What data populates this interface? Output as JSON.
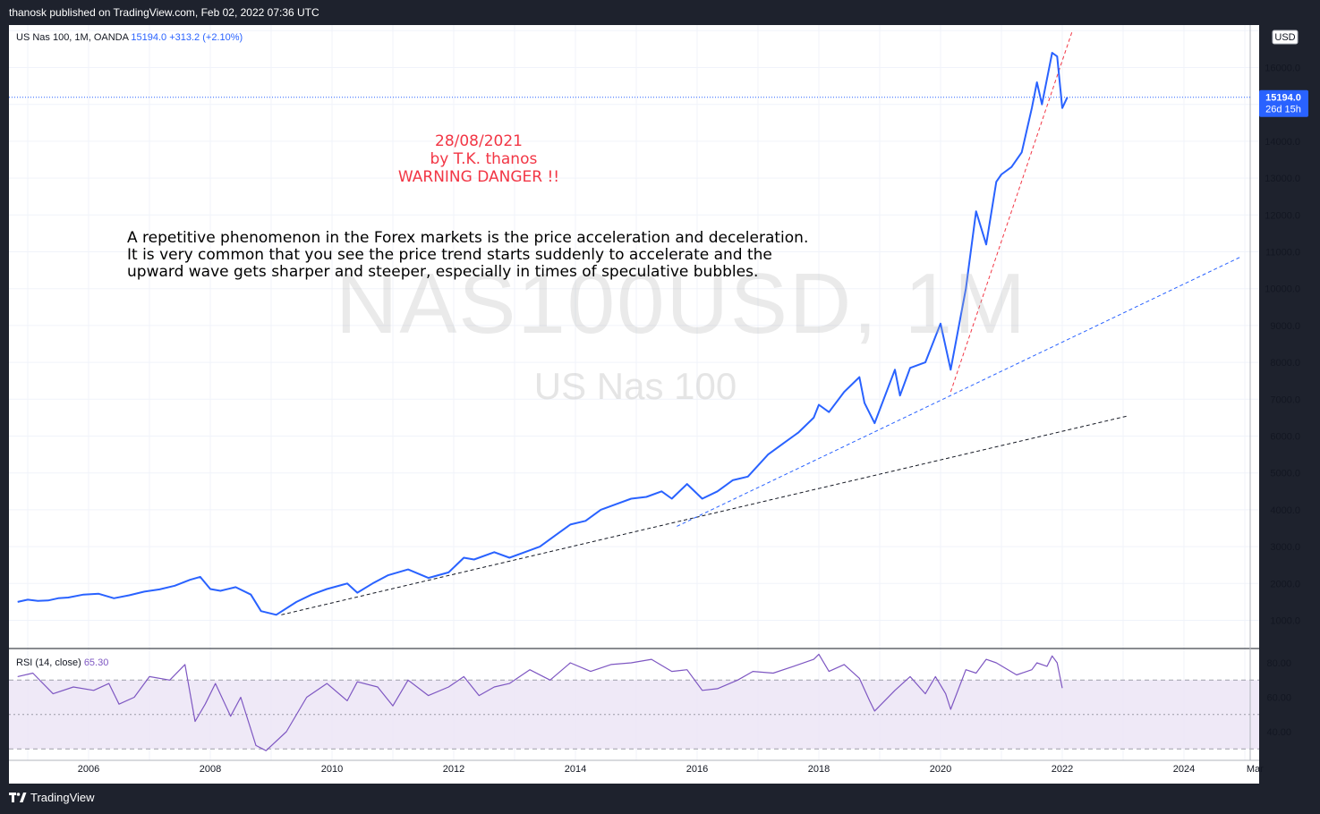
{
  "header": {
    "published": "thanosk published on TradingView.com, Feb 02, 2022 07:36 UTC"
  },
  "footer": {
    "brand": "TradingView"
  },
  "legend": {
    "symbol": "US Nas 100, 1M, OANDA",
    "last": "15194.0",
    "change": "+313.2 (+2.10%)"
  },
  "watermark": {
    "ticker": "NAS100USD, 1M",
    "name": "US Nas 100"
  },
  "annotations": {
    "red_lines": [
      "28/08/2021",
      "  by T.K. thanos",
      "WARNING DANGER !!"
    ],
    "text_lines": [
      "A repetitive phenomenon in the Forex markets is the price acceleration and deceleration.",
      "It is very common that you see the price trend starts suddenly to accelerate and the",
      "upward wave gets sharper and steeper, especially in times of speculative bubbles."
    ]
  },
  "price_axis": {
    "currency": "USD",
    "ticks": [
      "1000.0",
      "2000.0",
      "3000.0",
      "4000.0",
      "5000.0",
      "6000.0",
      "7000.0",
      "8000.0",
      "9000.0",
      "10000.0",
      "11000.0",
      "12000.0",
      "13000.0",
      "14000.0",
      "16000.0"
    ],
    "price_label": "15194.0",
    "countdown": "26d 15h"
  },
  "rsi_panel": {
    "label": "RSI (14, close)",
    "value": "65.30",
    "ticks": [
      "80.00",
      "60.00",
      "40.00"
    ]
  },
  "time_axis": {
    "labels": [
      "2006",
      "2008",
      "2010",
      "2012",
      "2014",
      "2016",
      "2018",
      "2020",
      "2022",
      "2024",
      "Mar"
    ]
  },
  "colors": {
    "price_line": "#2962ff",
    "rsi_line": "#7e57c2",
    "rsi_band": "#ede7f6",
    "warning": "#f23645",
    "background": "#1e222d"
  },
  "chart_data": {
    "type": "line",
    "series": [
      {
        "name": "US Nas 100",
        "x": [
          "2004-11",
          "2005-01",
          "2005-03",
          "2005-05",
          "2005-07",
          "2005-09",
          "2005-12",
          "2006-03",
          "2006-06",
          "2006-09",
          "2006-12",
          "2007-03",
          "2007-06",
          "2007-09",
          "2007-11",
          "2008-01",
          "2008-03",
          "2008-06",
          "2008-09",
          "2008-11",
          "2009-02",
          "2009-06",
          "2009-09",
          "2009-12",
          "2010-04",
          "2010-06",
          "2010-09",
          "2010-12",
          "2011-04",
          "2011-08",
          "2011-12",
          "2012-03",
          "2012-05",
          "2012-09",
          "2012-12",
          "2013-03",
          "2013-06",
          "2013-09",
          "2013-12",
          "2014-03",
          "2014-06",
          "2014-09",
          "2014-12",
          "2015-03",
          "2015-06",
          "2015-08",
          "2015-11",
          "2016-02",
          "2016-05",
          "2016-08",
          "2016-11",
          "2017-03",
          "2017-06",
          "2017-09",
          "2017-12",
          "2018-01",
          "2018-03",
          "2018-06",
          "2018-09",
          "2018-10",
          "2018-12",
          "2019-04",
          "2019-05",
          "2019-07",
          "2019-10",
          "2019-12",
          "2020-01",
          "2020-03",
          "2020-06",
          "2020-08",
          "2020-10",
          "2020-12",
          "2021-01",
          "2021-03",
          "2021-05",
          "2021-07",
          "2021-08",
          "2021-09",
          "2021-11",
          "2021-12",
          "2022-01",
          "2022-02"
        ],
        "values": [
          1500,
          1560,
          1530,
          1540,
          1600,
          1620,
          1700,
          1720,
          1600,
          1680,
          1780,
          1840,
          1940,
          2100,
          2180,
          1850,
          1800,
          1900,
          1700,
          1250,
          1150,
          1500,
          1700,
          1850,
          2000,
          1750,
          2000,
          2220,
          2380,
          2150,
          2300,
          2700,
          2650,
          2850,
          2700,
          2850,
          3000,
          3300,
          3600,
          3700,
          4000,
          4150,
          4300,
          4350,
          4500,
          4300,
          4700,
          4300,
          4500,
          4800,
          4900,
          5500,
          5800,
          6100,
          6500,
          6850,
          6650,
          7200,
          7600,
          6900,
          6350,
          7800,
          7100,
          7850,
          8000,
          8700,
          9050,
          7800,
          10000,
          12100,
          11200,
          12900,
          13100,
          13300,
          13700,
          14900,
          15600,
          15000,
          16400,
          16300,
          14900,
          15194
        ]
      },
      {
        "name": "RSI (14, close)",
        "x": [
          "2004-11",
          "2005-02",
          "2005-06",
          "2005-10",
          "2006-02",
          "2006-05",
          "2006-07",
          "2006-10",
          "2007-01",
          "2007-05",
          "2007-08",
          "2007-10",
          "2007-12",
          "2008-02",
          "2008-05",
          "2008-07",
          "2008-10",
          "2008-12",
          "2009-04",
          "2009-08",
          "2009-12",
          "2010-04",
          "2010-06",
          "2010-10",
          "2011-01",
          "2011-04",
          "2011-08",
          "2011-12",
          "2012-03",
          "2012-06",
          "2012-09",
          "2012-12",
          "2013-04",
          "2013-08",
          "2013-12",
          "2014-04",
          "2014-08",
          "2014-12",
          "2015-04",
          "2015-08",
          "2015-11",
          "2016-02",
          "2016-05",
          "2016-09",
          "2016-12",
          "2017-04",
          "2017-08",
          "2017-12",
          "2018-01",
          "2018-03",
          "2018-06",
          "2018-09",
          "2018-11",
          "2018-12",
          "2019-04",
          "2019-07",
          "2019-10",
          "2019-12",
          "2020-02",
          "2020-03",
          "2020-06",
          "2020-08",
          "2020-10",
          "2020-12",
          "2021-04",
          "2021-07",
          "2021-08",
          "2021-10",
          "2021-11",
          "2021-12",
          "2022-01"
        ],
        "values": [
          72,
          74,
          62,
          66,
          64,
          68,
          56,
          60,
          72,
          70,
          79,
          46,
          56,
          68,
          49,
          60,
          32,
          29,
          40,
          60,
          68,
          58,
          69,
          66,
          55,
          70,
          61,
          66,
          72,
          61,
          66,
          68,
          76,
          70,
          80,
          75,
          79,
          80,
          82,
          75,
          76,
          64,
          65,
          70,
          75,
          74,
          78,
          82,
          85,
          75,
          79,
          71,
          58,
          52,
          64,
          72,
          62,
          72,
          62,
          53,
          76,
          74,
          82,
          80,
          73,
          76,
          80,
          78,
          84,
          80,
          65.3
        ]
      }
    ],
    "price_ylim": [
      0,
      17000
    ],
    "rsi_ylim": [
      25,
      90
    ],
    "rsi_bands": [
      30,
      70
    ],
    "last_value": 15194.0,
    "trendlines": [
      {
        "color": "black",
        "style": "dashed",
        "from": {
          "x": "2009-03",
          "y": 1150
        },
        "to": {
          "x": "2023-02",
          "y": 6550
        }
      },
      {
        "color": "blue",
        "style": "dashed",
        "from": {
          "x": "2015-09",
          "y": 3550
        },
        "to": {
          "x": "2024-12",
          "y": 10850
        }
      },
      {
        "color": "red",
        "style": "dashed",
        "from": {
          "x": "2020-03",
          "y": 7200
        },
        "to": {
          "x": "2022-03",
          "y": 17000
        }
      },
      {
        "color": "red",
        "style": "solid",
        "panel": "rsi",
        "from": {
          "x": "2021-08",
          "y": 85
        },
        "to": {
          "x": "2022-03",
          "y": 77
        }
      }
    ]
  }
}
